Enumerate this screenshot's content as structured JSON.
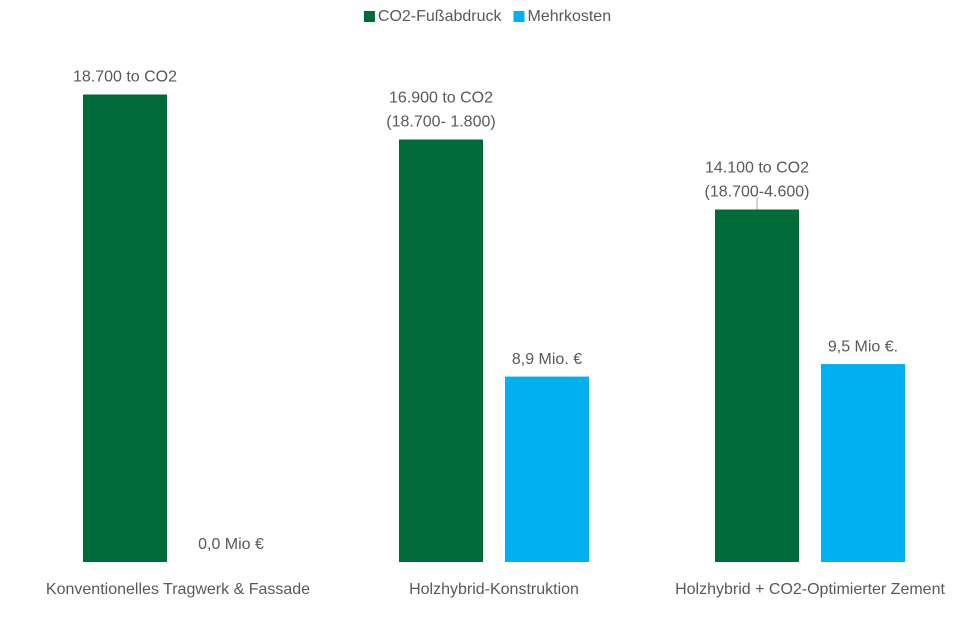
{
  "chart_data": {
    "type": "bar",
    "categories": [
      "Konventionelles Tragwerk & Fassade",
      "Holzhybrid-Konstruktion",
      "Holzhybrid + CO2-Optimierter Zement"
    ],
    "series": [
      {
        "name": "CO2-Fußabdruck",
        "color": "#006a38",
        "values": [
          18700,
          16900,
          14100
        ],
        "value_labels": [
          [
            "18.700 to CO2"
          ],
          [
            "16.900 to CO2",
            "(18.700- 1.800)"
          ],
          [
            "14.100 to CO2",
            "(18.700-4.600)"
          ]
        ]
      },
      {
        "name": "Mehrkosten",
        "color": "#00b0f0",
        "axis": "y2",
        "values": [
          0,
          8.9,
          9.5
        ],
        "value_labels": [
          [
            "0,0 Mio €"
          ],
          [
            "8,9 Mio. €"
          ],
          [
            "9,5 Mio €."
          ]
        ]
      }
    ],
    "ylim": [
      0,
      20000
    ],
    "y2lim": [
      0,
      24
    ],
    "legend": "top"
  }
}
